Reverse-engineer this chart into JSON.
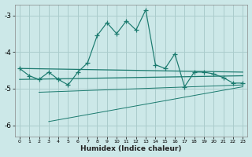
{
  "xlabel": "Humidex (Indice chaleur)",
  "background_color": "#cce8e8",
  "grid_color": "#aacccc",
  "line_color": "#1a7a6e",
  "x_values": [
    0,
    1,
    2,
    3,
    4,
    5,
    6,
    7,
    8,
    9,
    10,
    11,
    12,
    13,
    14,
    15,
    16,
    17,
    18,
    19,
    20,
    21,
    22,
    23
  ],
  "main_line": [
    -4.45,
    -4.65,
    -4.75,
    -4.55,
    -4.75,
    -4.9,
    -4.55,
    -4.3,
    -3.55,
    -3.2,
    -3.5,
    -3.15,
    -3.4,
    -2.85,
    -4.35,
    -4.45,
    -4.05,
    -4.95,
    -4.55,
    -4.55,
    -4.6,
    -4.7,
    -4.85,
    -4.85
  ],
  "line1_x": [
    0,
    23
  ],
  "line1_y": [
    -4.45,
    -4.55
  ],
  "line2_x": [
    0,
    23
  ],
  "line2_y": [
    -4.75,
    -4.65
  ],
  "line3_x": [
    2,
    23
  ],
  "line3_y": [
    -5.1,
    -4.9
  ],
  "line4_x": [
    3,
    23
  ],
  "line4_y": [
    -5.9,
    -4.95
  ],
  "ylim": [
    -6.3,
    -2.7
  ],
  "xlim": [
    -0.5,
    23.5
  ],
  "yticks": [
    -6,
    -5,
    -4,
    -3
  ],
  "xticks": [
    0,
    1,
    2,
    3,
    4,
    5,
    6,
    7,
    8,
    9,
    10,
    11,
    12,
    13,
    14,
    15,
    16,
    17,
    18,
    19,
    20,
    21,
    22,
    23
  ]
}
